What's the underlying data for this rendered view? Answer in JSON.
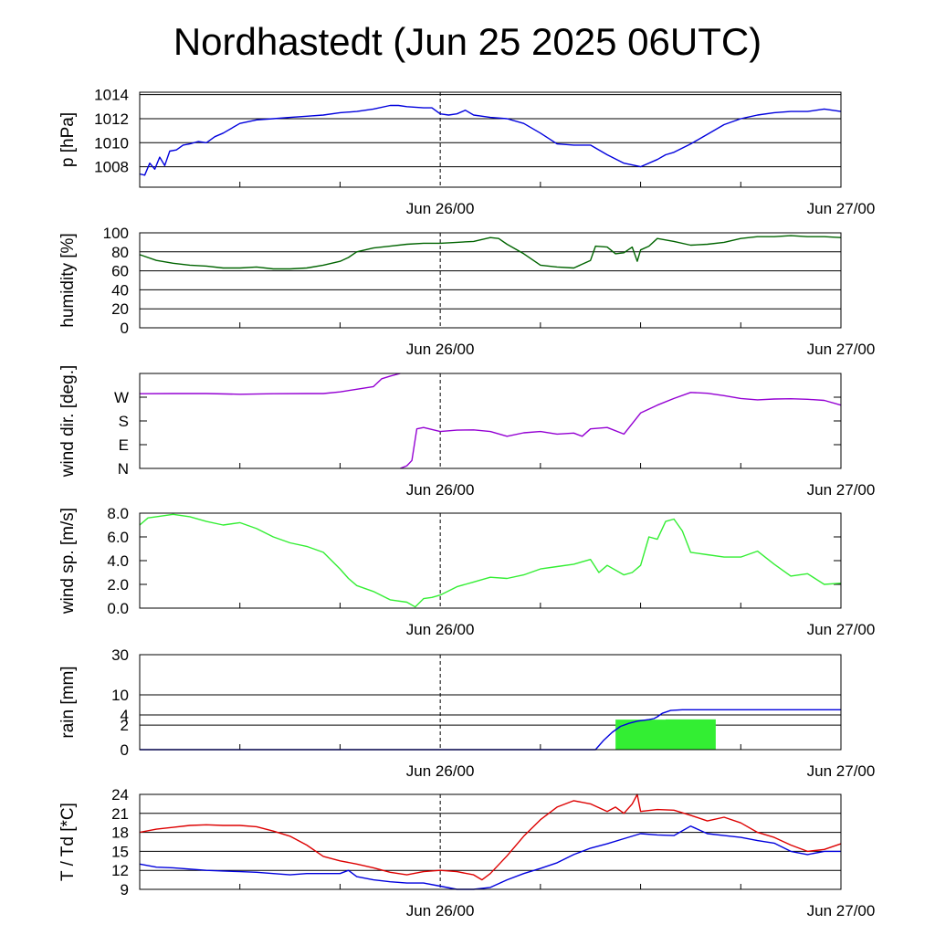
{
  "title": "Nordhastedt (Jun 25 2025 06UTC)",
  "colors": {
    "pressure": "#0000dd",
    "humidity": "#006400",
    "wind_dir": "#9400d3",
    "wind_speed": "#33ee33",
    "rain_total": "#0000dd",
    "rain_bar": "#33ee33",
    "temperature": "#dd0000",
    "dewpoint": "#0000dd"
  },
  "chart_data": [
    {
      "id": "pressure",
      "type": "line",
      "ylabel": "p [hPa]",
      "ylim": [
        1006.3,
        1014.2
      ],
      "yticks": [
        1008,
        1010,
        1012,
        1014
      ],
      "ytick_labels": [
        "1008",
        "1010",
        "1012",
        "1014"
      ],
      "xlim": [
        0,
        42
      ],
      "xtick_labels": [
        "Jun 26/00",
        "Jun 27/00"
      ],
      "xtick_positions": [
        18,
        42
      ],
      "grid": true,
      "series": [
        {
          "color_key": "pressure",
          "x": [
            0,
            0.3,
            0.6,
            0.9,
            1.2,
            1.5,
            1.8,
            2.2,
            2.6,
            3.0,
            3.5,
            4.0,
            4.5,
            5,
            6,
            7,
            8,
            9,
            10,
            11,
            12,
            13,
            14,
            15,
            15.5,
            16,
            17,
            17.5,
            18,
            18.5,
            19,
            19.5,
            20,
            21,
            22,
            23,
            24,
            25,
            26,
            27,
            28,
            29,
            30,
            31,
            31.5,
            32,
            33,
            34,
            35,
            36,
            37,
            38,
            39,
            40,
            41,
            42
          ],
          "y": [
            1007.4,
            1007.3,
            1008.3,
            1007.8,
            1008.8,
            1008.1,
            1009.3,
            1009.4,
            1009.8,
            1009.9,
            1010.1,
            1010.0,
            1010.5,
            1010.8,
            1011.6,
            1011.9,
            1012.0,
            1012.1,
            1012.2,
            1012.3,
            1012.5,
            1012.6,
            1012.8,
            1013.1,
            1013.1,
            1013.0,
            1012.9,
            1012.9,
            1012.4,
            1012.3,
            1012.4,
            1012.7,
            1012.3,
            1012.1,
            1012.0,
            1011.6,
            1010.8,
            1009.9,
            1009.8,
            1009.8,
            1009.0,
            1008.3,
            1008.0,
            1008.6,
            1009.0,
            1009.2,
            1009.9,
            1010.7,
            1011.5,
            1012.0,
            1012.3,
            1012.5,
            1012.6,
            1012.6,
            1012.8,
            1012.6
          ]
        }
      ]
    },
    {
      "id": "humidity",
      "type": "line",
      "ylabel": "humidity [%]",
      "ylim": [
        0,
        100
      ],
      "yticks": [
        0,
        20,
        40,
        60,
        80,
        100
      ],
      "ytick_labels": [
        "0",
        "20",
        "40",
        "60",
        "80",
        "100"
      ],
      "xlim": [
        0,
        42
      ],
      "xtick_labels": [
        "Jun 26/00",
        "Jun 27/00"
      ],
      "xtick_positions": [
        18,
        42
      ],
      "grid": true,
      "series": [
        {
          "color_key": "humidity",
          "x": [
            0,
            1,
            2,
            3,
            4,
            5,
            6,
            7,
            8,
            9,
            10,
            11,
            12,
            12.5,
            13,
            14,
            15,
            16,
            17,
            18,
            19,
            20,
            21,
            21.5,
            22,
            23,
            24,
            25,
            26,
            27,
            27.3,
            28,
            28.5,
            29,
            29.5,
            29.8,
            30,
            30.5,
            31,
            32,
            33,
            34,
            35,
            36,
            37,
            38,
            39,
            40,
            41,
            42
          ],
          "y": [
            77,
            71,
            68,
            66,
            65,
            63,
            63,
            64,
            62,
            62,
            63,
            66,
            70,
            74,
            80,
            84,
            86,
            88,
            89,
            89,
            90,
            91,
            95,
            94,
            88,
            78,
            66,
            64,
            63,
            71,
            86,
            85,
            78,
            79,
            85,
            70,
            82,
            86,
            94,
            91,
            87,
            88,
            90,
            94,
            96,
            96,
            97,
            96,
            96,
            95
          ]
        }
      ]
    },
    {
      "id": "wind_dir",
      "type": "line",
      "ylabel": "wind dir. [deg.]",
      "ylim": [
        0,
        360
      ],
      "yticks": [
        0,
        90,
        180,
        270
      ],
      "ytick_labels": [
        "N",
        "E",
        "S",
        "W"
      ],
      "xlim": [
        0,
        42
      ],
      "xtick_labels": [
        "Jun 26/00",
        "Jun 27/00"
      ],
      "xtick_positions": [
        18,
        42
      ],
      "grid": false,
      "series": [
        {
          "color_key": "wind_dir",
          "x": [
            0,
            2,
            4,
            6,
            8,
            10,
            11,
            12,
            13,
            14,
            14.5,
            15,
            15.6
          ],
          "y": [
            283,
            284,
            284,
            281,
            283,
            284,
            284,
            290,
            300,
            310,
            340,
            350,
            360
          ]
        },
        {
          "color_key": "wind_dir",
          "x": [
            15.6,
            16,
            16.3,
            16.6,
            17,
            18,
            19,
            20,
            21,
            22,
            23,
            24,
            25,
            26,
            26.5,
            27,
            28,
            29,
            30,
            31,
            32,
            33,
            34,
            35,
            36,
            37,
            38,
            39,
            40,
            41,
            42
          ],
          "y": [
            0,
            10,
            30,
            150,
            155,
            140,
            145,
            146,
            140,
            122,
            135,
            140,
            130,
            134,
            122,
            150,
            155,
            130,
            210,
            240,
            265,
            288,
            285,
            276,
            265,
            260,
            263,
            264,
            262,
            258,
            240
          ]
        }
      ]
    },
    {
      "id": "wind_speed",
      "type": "line",
      "ylabel": "wind sp. [m/s]",
      "ylim": [
        0,
        8
      ],
      "yticks": [
        0,
        2,
        4,
        6,
        8
      ],
      "ytick_labels": [
        "0.0",
        "2.0",
        "4.0",
        "6.0",
        "8.0"
      ],
      "xlim": [
        0,
        42
      ],
      "xtick_labels": [
        "Jun 26/00",
        "Jun 27/00"
      ],
      "xtick_positions": [
        18,
        42
      ],
      "grid": false,
      "series": [
        {
          "color_key": "wind_speed",
          "x": [
            0,
            0.5,
            1,
            2,
            3,
            4,
            5,
            6,
            7,
            8,
            9,
            10,
            11,
            12,
            12.5,
            13,
            14,
            15,
            16,
            16.5,
            17,
            17.5,
            18,
            19,
            20,
            21,
            22,
            23,
            24,
            25,
            26,
            27,
            27.5,
            28,
            29,
            29.5,
            30,
            30.5,
            31,
            31.5,
            32,
            32.5,
            33,
            34,
            35,
            36,
            37,
            38,
            39,
            40,
            41,
            42
          ],
          "y": [
            7.0,
            7.6,
            7.7,
            7.9,
            7.7,
            7.3,
            7.0,
            7.2,
            6.7,
            6.0,
            5.5,
            5.2,
            4.7,
            3.3,
            2.5,
            1.9,
            1.4,
            0.7,
            0.5,
            0.1,
            0.8,
            0.9,
            1.1,
            1.8,
            2.2,
            2.6,
            2.5,
            2.8,
            3.3,
            3.5,
            3.7,
            4.1,
            3.0,
            3.6,
            2.8,
            3.0,
            3.6,
            6.0,
            5.8,
            7.3,
            7.5,
            6.5,
            4.7,
            4.5,
            4.3,
            4.3,
            4.8,
            3.7,
            2.7,
            2.9,
            2.0,
            2.1
          ]
        }
      ]
    },
    {
      "id": "rain",
      "type": "bar",
      "ylabel": "rain [mm]",
      "ylim": [
        0,
        30
      ],
      "yticks": [
        0,
        2,
        4,
        10,
        30
      ],
      "ytick_labels": [
        "0",
        "2",
        "4",
        "10",
        "30"
      ],
      "scale": "sqrt",
      "xlim": [
        0,
        42
      ],
      "xtick_labels": [
        "Jun 26/00",
        "Jun 27/00"
      ],
      "xtick_positions": [
        18,
        42
      ],
      "grid": true,
      "bars": [
        {
          "x_start": 28.5,
          "x_end": 31.5,
          "value": 3.0
        },
        {
          "x_start": 31.5,
          "x_end": 34.5,
          "value": 3.05
        }
      ],
      "series": [
        {
          "color_key": "rain_total",
          "x": [
            0,
            27.3,
            27.8,
            28.3,
            28.8,
            29.3,
            29.8,
            30.5,
            30.8,
            31.0,
            31.3,
            31.8,
            32.5,
            34,
            36,
            38,
            40,
            42
          ],
          "y": [
            0,
            0,
            0.3,
            1.0,
            1.8,
            2.3,
            2.7,
            3.0,
            3.2,
            3.6,
            4.4,
            5.1,
            5.3,
            5.3,
            5.3,
            5.3,
            5.3,
            5.3
          ]
        }
      ]
    },
    {
      "id": "temperature",
      "type": "line",
      "ylabel": "T / Td [*C]",
      "ylim": [
        9,
        24
      ],
      "yticks": [
        9,
        12,
        15,
        18,
        21,
        24
      ],
      "ytick_labels": [
        "9",
        "12",
        "15",
        "18",
        "21",
        "24"
      ],
      "xlim": [
        0,
        42
      ],
      "xtick_labels": [
        "Jun 26/00",
        "Jun 27/00"
      ],
      "xtick_positions": [
        18,
        42
      ],
      "grid": true,
      "series": [
        {
          "name": "",
          "color_key": "temperature",
          "x": [
            0,
            1,
            2,
            3,
            4,
            5,
            6,
            7,
            8,
            9,
            10,
            11,
            12,
            13,
            14,
            15,
            16,
            17,
            18,
            19,
            20,
            20.5,
            21,
            22,
            23,
            24,
            25,
            26,
            27,
            28,
            28.5,
            29,
            29.5,
            29.8,
            30,
            31,
            32,
            33,
            34,
            35,
            36,
            37,
            38,
            39,
            40,
            41,
            42
          ],
          "y": [
            18.0,
            18.5,
            18.8,
            19.1,
            19.2,
            19.1,
            19.1,
            18.9,
            18.2,
            17.4,
            16.0,
            14.2,
            13.5,
            13.0,
            12.4,
            11.7,
            11.3,
            11.8,
            12.0,
            11.8,
            11.3,
            10.5,
            11.5,
            14.3,
            17.4,
            20.0,
            22.0,
            23.0,
            22.5,
            21.3,
            22.0,
            21.0,
            22.5,
            24.0,
            21.3,
            21.6,
            21.5,
            20.7,
            19.8,
            20.4,
            19.5,
            18.0,
            17.2,
            16.0,
            15.0,
            15.3,
            16.2
          ]
        },
        {
          "name": "",
          "color_key": "dewpoint",
          "x": [
            0,
            1,
            2,
            3,
            4,
            5,
            6,
            7,
            8,
            9,
            10,
            11,
            12,
            12.5,
            13,
            14,
            15,
            16,
            17,
            18,
            19,
            20,
            21,
            22,
            23,
            24,
            25,
            26,
            27,
            28,
            29,
            30,
            31,
            32,
            33,
            34,
            35,
            36,
            37,
            38,
            39,
            40,
            41,
            42
          ],
          "y": [
            13.0,
            12.5,
            12.4,
            12.2,
            12.0,
            11.9,
            11.8,
            11.7,
            11.5,
            11.3,
            11.5,
            11.5,
            11.5,
            12.0,
            11.0,
            10.5,
            10.2,
            10.0,
            10.0,
            9.5,
            9.0,
            9.0,
            9.3,
            10.5,
            11.5,
            12.3,
            13.2,
            14.5,
            15.5,
            16.2,
            17.0,
            17.8,
            17.6,
            17.5,
            19.0,
            17.8,
            17.5,
            17.2,
            16.7,
            16.3,
            15.0,
            14.5,
            15.0,
            15.0
          ]
        }
      ]
    }
  ]
}
